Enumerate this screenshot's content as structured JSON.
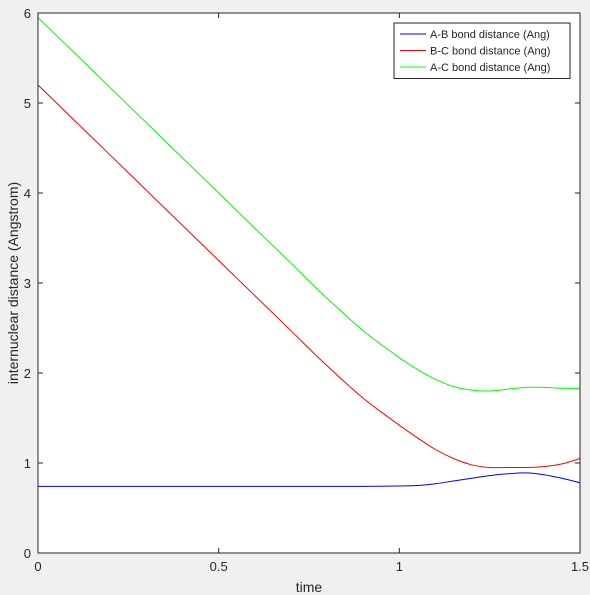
{
  "chart_data": {
    "type": "line",
    "xlabel": "time",
    "ylabel": "internuclear distance (Angstrom)",
    "xlim": [
      0,
      1.5
    ],
    "ylim": [
      0,
      6
    ],
    "x_ticks": [
      0,
      0.5,
      1,
      1.5
    ],
    "x_tick_labels": [
      "0",
      "0.5",
      "1",
      "1.5"
    ],
    "y_ticks": [
      0,
      1,
      2,
      3,
      4,
      5,
      6
    ],
    "y_tick_labels": [
      "0",
      "1",
      "2",
      "3",
      "4",
      "5",
      "6"
    ],
    "grid": false,
    "legend_position": "top-right",
    "background": "#f0f0f0",
    "axes_background": "#ffffff",
    "series": [
      {
        "name": "A-B bond distance (Ang)",
        "color": "#0000ff",
        "x": [
          0,
          0.1,
          0.2,
          0.3,
          0.4,
          0.5,
          0.6,
          0.7,
          0.8,
          0.9,
          1.0,
          1.05,
          1.1,
          1.15,
          1.2,
          1.25,
          1.3,
          1.35,
          1.4,
          1.45,
          1.5
        ],
        "y": [
          0.74,
          0.74,
          0.74,
          0.74,
          0.74,
          0.74,
          0.74,
          0.74,
          0.74,
          0.74,
          0.745,
          0.75,
          0.77,
          0.8,
          0.83,
          0.86,
          0.88,
          0.89,
          0.87,
          0.83,
          0.78
        ]
      },
      {
        "name": "B-C bond distance (Ang)",
        "color": "#ff0000",
        "x": [
          0,
          0.1,
          0.2,
          0.3,
          0.4,
          0.5,
          0.6,
          0.7,
          0.8,
          0.9,
          1.0,
          1.05,
          1.1,
          1.15,
          1.2,
          1.25,
          1.3,
          1.35,
          1.4,
          1.45,
          1.5
        ],
        "y": [
          5.2,
          4.81,
          4.42,
          4.03,
          3.64,
          3.25,
          2.86,
          2.47,
          2.08,
          1.72,
          1.42,
          1.28,
          1.15,
          1.05,
          0.98,
          0.95,
          0.95,
          0.95,
          0.96,
          0.99,
          1.05
        ]
      },
      {
        "name": "A-C bond distance (Ang)",
        "color": "#00ff00",
        "x": [
          0,
          0.1,
          0.2,
          0.3,
          0.4,
          0.5,
          0.6,
          0.7,
          0.8,
          0.9,
          1.0,
          1.05,
          1.1,
          1.15,
          1.2,
          1.25,
          1.3,
          1.35,
          1.4,
          1.45,
          1.5
        ],
        "y": [
          5.95,
          5.56,
          5.17,
          4.78,
          4.39,
          4.0,
          3.61,
          3.22,
          2.83,
          2.47,
          2.17,
          2.04,
          1.93,
          1.85,
          1.81,
          1.8,
          1.82,
          1.84,
          1.84,
          1.83,
          1.83
        ]
      }
    ]
  }
}
